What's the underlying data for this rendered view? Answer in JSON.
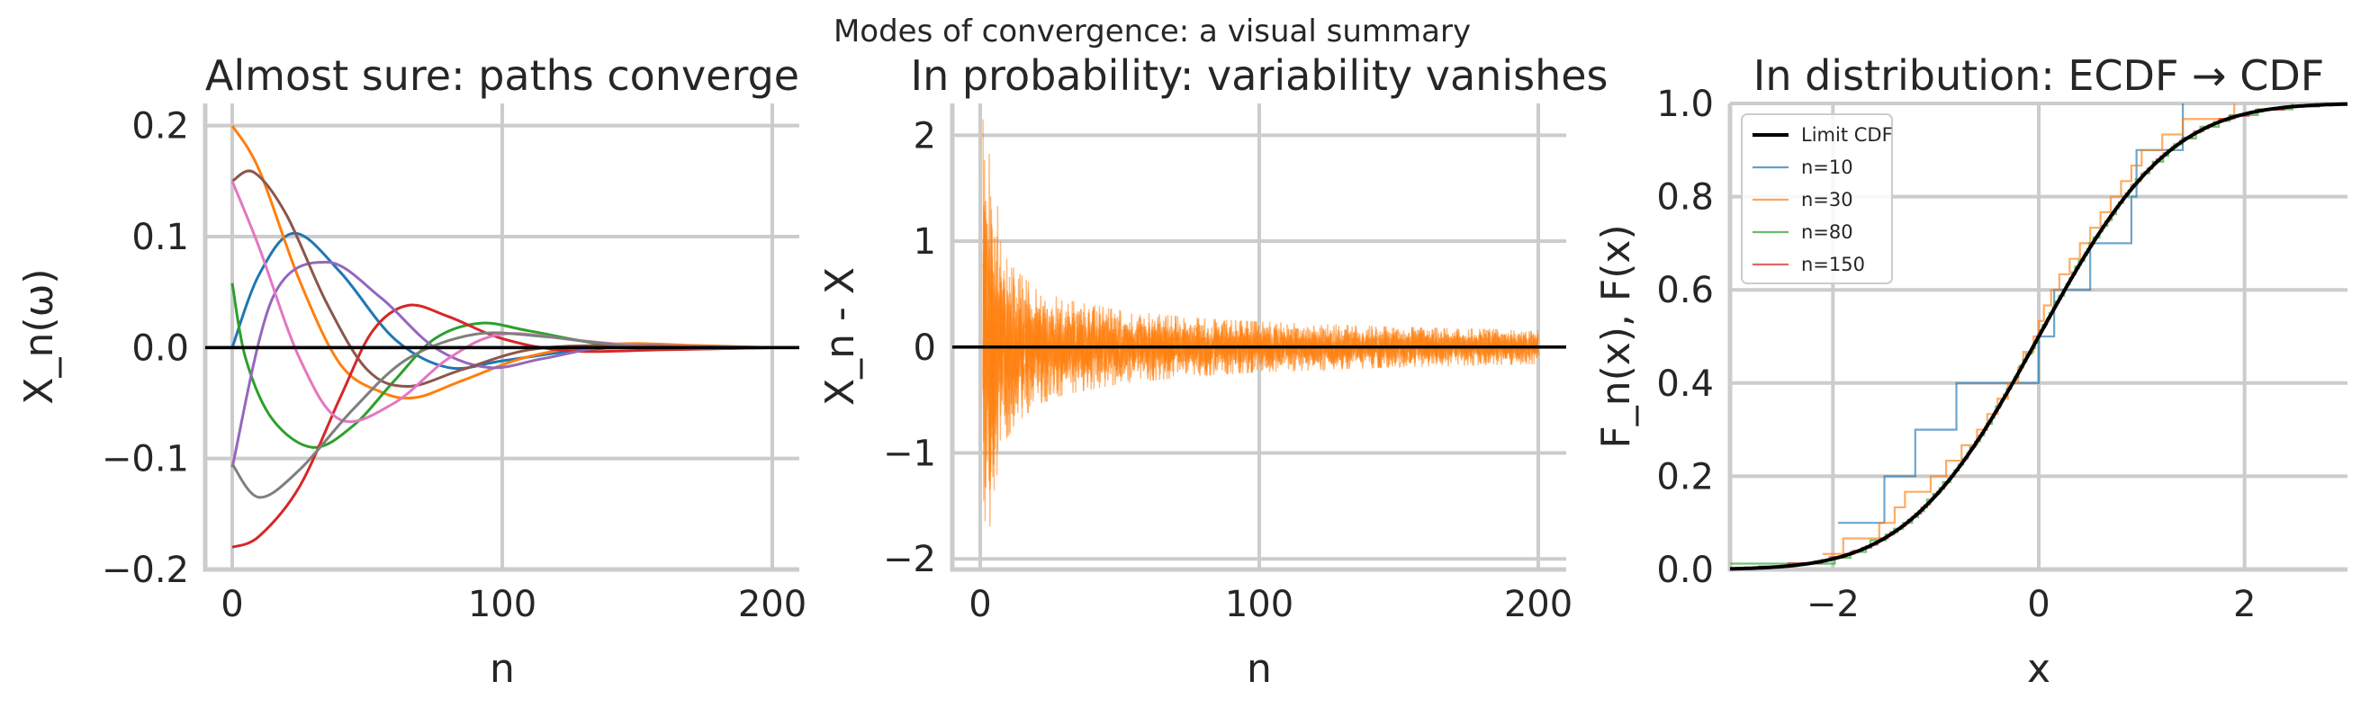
{
  "figure_title": "Modes of convergence: a visual summary",
  "colors": {
    "tab10": [
      "#1f77b4",
      "#ff7f0e",
      "#2ca02c",
      "#d62728",
      "#9467bd",
      "#8c564b",
      "#e377c2",
      "#7f7f7f"
    ],
    "limit": "#000000",
    "grid": "#cccccc"
  },
  "chart_data": [
    {
      "type": "line",
      "title": "Almost sure: paths converge",
      "xlabel": "n",
      "ylabel": "X_n(ω)",
      "xlim": [
        -10,
        210
      ],
      "ylim": [
        -0.2,
        0.22
      ],
      "xticks": [
        0,
        100,
        200
      ],
      "xtick_labels": [
        "0",
        "100",
        "200"
      ],
      "yticks": [
        -0.2,
        -0.1,
        0.0,
        0.1,
        0.2
      ],
      "ytick_labels": [
        "−0.2",
        "−0.1",
        "0.0",
        "0.1",
        "0.2"
      ],
      "grid": true,
      "reference_line_y": 0,
      "series": [
        {
          "values": [
            [
              0,
              0.0
            ],
            [
              10,
              0.066
            ],
            [
              23,
              0.103
            ],
            [
              40,
              0.068
            ],
            [
              60,
              0.008
            ],
            [
              80,
              -0.018
            ],
            [
              100,
              -0.012
            ],
            [
              130,
              -0.002
            ],
            [
              160,
              0.001
            ],
            [
              200,
              0.0
            ]
          ]
        },
        {
          "values": [
            [
              0,
              0.2
            ],
            [
              10,
              0.16
            ],
            [
              25,
              0.06
            ],
            [
              40,
              -0.015
            ],
            [
              55,
              -0.04
            ],
            [
              68,
              -0.045
            ],
            [
              85,
              -0.03
            ],
            [
              110,
              -0.008
            ],
            [
              140,
              0.003
            ],
            [
              170,
              0.002
            ],
            [
              200,
              0.0
            ]
          ]
        },
        {
          "values": [
            [
              0,
              0.058
            ],
            [
              5,
              -0.01
            ],
            [
              15,
              -0.065
            ],
            [
              30,
              -0.09
            ],
            [
              45,
              -0.07
            ],
            [
              60,
              -0.03
            ],
            [
              75,
              0.008
            ],
            [
              92,
              0.022
            ],
            [
              110,
              0.015
            ],
            [
              140,
              0.002
            ],
            [
              170,
              -0.001
            ],
            [
              200,
              0.0
            ]
          ]
        },
        {
          "values": [
            [
              0,
              -0.18
            ],
            [
              10,
              -0.17
            ],
            [
              25,
              -0.125
            ],
            [
              40,
              -0.045
            ],
            [
              52,
              0.015
            ],
            [
              65,
              0.038
            ],
            [
              80,
              0.028
            ],
            [
              100,
              0.008
            ],
            [
              125,
              -0.003
            ],
            [
              160,
              -0.002
            ],
            [
              200,
              0.0
            ]
          ]
        },
        {
          "values": [
            [
              0,
              -0.108
            ],
            [
              15,
              0.045
            ],
            [
              35,
              0.077
            ],
            [
              55,
              0.045
            ],
            [
              75,
              0.0
            ],
            [
              95,
              -0.018
            ],
            [
              115,
              -0.01
            ],
            [
              140,
              0.001
            ],
            [
              170,
              0.001
            ],
            [
              200,
              0.0
            ]
          ]
        },
        {
          "values": [
            [
              0,
              0.15
            ],
            [
              8,
              0.158
            ],
            [
              20,
              0.12
            ],
            [
              35,
              0.04
            ],
            [
              50,
              -0.02
            ],
            [
              65,
              -0.035
            ],
            [
              85,
              -0.02
            ],
            [
              110,
              -0.002
            ],
            [
              140,
              0.002
            ],
            [
              170,
              0.0
            ],
            [
              200,
              0.0
            ]
          ]
        },
        {
          "values": [
            [
              0,
              0.15
            ],
            [
              10,
              0.09
            ],
            [
              25,
              -0.01
            ],
            [
              40,
              -0.065
            ],
            [
              60,
              -0.05
            ],
            [
              80,
              -0.01
            ],
            [
              100,
              0.012
            ],
            [
              130,
              0.006
            ],
            [
              160,
              0.0
            ],
            [
              200,
              0.0
            ]
          ]
        },
        {
          "values": [
            [
              0,
              -0.105
            ],
            [
              10,
              -0.135
            ],
            [
              25,
              -0.11
            ],
            [
              45,
              -0.055
            ],
            [
              65,
              -0.01
            ],
            [
              90,
              0.012
            ],
            [
              115,
              0.01
            ],
            [
              145,
              0.002
            ],
            [
              175,
              0.0
            ],
            [
              200,
              0.0
            ]
          ]
        }
      ]
    },
    {
      "type": "line",
      "title": "In probability: variability vanishes",
      "xlabel": "n",
      "ylabel": "X_n - X",
      "xlim": [
        -10,
        210
      ],
      "ylim": [
        -2.1,
        2.3
      ],
      "xticks": [
        0,
        100,
        200
      ],
      "xtick_labels": [
        "0",
        "100",
        "200"
      ],
      "yticks": [
        -2,
        -1,
        0,
        1,
        2
      ],
      "ytick_labels": [
        "−2",
        "−1",
        "0",
        "1",
        "2"
      ],
      "grid": true,
      "reference_line_y": 0,
      "envelope": {
        "description_free": true,
        "n": [
          1,
          2,
          3,
          5,
          8,
          12,
          20,
          30,
          50,
          75,
          100,
          150,
          200
        ],
        "amplitude": [
          2.15,
          2.0,
          1.9,
          1.6,
          0.95,
          0.75,
          0.55,
          0.45,
          0.35,
          0.28,
          0.24,
          0.19,
          0.16
        ]
      }
    },
    {
      "type": "line",
      "title": "In distribution: ECDF → CDF",
      "xlabel": "x",
      "ylabel": "F_n(x), F(x)",
      "xlim": [
        -3,
        3
      ],
      "ylim": [
        0,
        1
      ],
      "xticks": [
        -2,
        0,
        2
      ],
      "xtick_labels": [
        "−2",
        "0",
        "2"
      ],
      "yticks": [
        0.0,
        0.2,
        0.4,
        0.6,
        0.8,
        1.0
      ],
      "ytick_labels": [
        "0.0",
        "0.2",
        "0.4",
        "0.6",
        "0.8",
        "1.0"
      ],
      "grid": true,
      "legend_position": "upper-left",
      "series": [
        {
          "name": "Limit CDF",
          "kind": "normal-cdf",
          "mean": 0,
          "sd": 1
        },
        {
          "name": "n=10",
          "kind": "ecdf",
          "samples": [
            -1.95,
            -1.5,
            -1.2,
            -0.8,
            0.0,
            0.15,
            0.5,
            0.9,
            0.95,
            1.4
          ]
        },
        {
          "name": "n=30",
          "kind": "ecdf",
          "samples": [
            -2.1,
            -1.9,
            -1.55,
            -1.4,
            -1.3,
            -1.05,
            -0.9,
            -0.75,
            -0.6,
            -0.5,
            -0.4,
            -0.3,
            -0.2,
            -0.15,
            -0.05,
            0.0,
            0.05,
            0.12,
            0.2,
            0.3,
            0.4,
            0.5,
            0.6,
            0.7,
            0.8,
            0.9,
            1.0,
            1.2,
            1.4,
            1.9
          ]
        },
        {
          "name": "n=80",
          "kind": "ecdf",
          "seed": 80
        },
        {
          "name": "n=150",
          "kind": "ecdf",
          "seed": 150
        }
      ]
    }
  ]
}
